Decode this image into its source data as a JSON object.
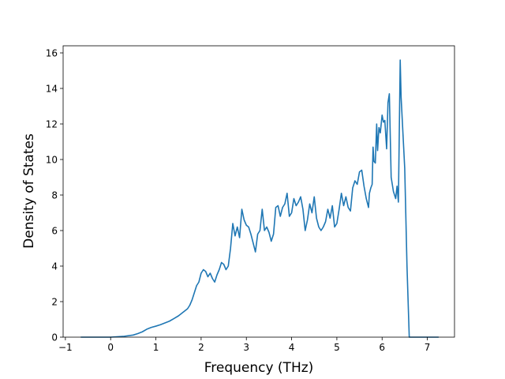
{
  "chart_data": {
    "type": "line",
    "title": "",
    "xlabel": "Frequency (THz)",
    "ylabel": "Density of States",
    "xlim": [
      -1.05,
      7.6
    ],
    "ylim": [
      0,
      16.4
    ],
    "xticks": [
      -1,
      0,
      1,
      2,
      3,
      4,
      5,
      6,
      7
    ],
    "yticks": [
      0,
      2,
      4,
      6,
      8,
      10,
      12,
      14,
      16
    ],
    "xtick_labels": [
      "−1",
      "0",
      "1",
      "2",
      "3",
      "4",
      "5",
      "6",
      "7"
    ],
    "ytick_labels": [
      "0",
      "2",
      "4",
      "6",
      "8",
      "10",
      "12",
      "14",
      "16"
    ],
    "grid": false,
    "legend": "none",
    "series": [
      {
        "color": "#1f77b4",
        "x": [
          -0.66,
          0.0,
          0.3,
          0.5,
          0.6,
          0.7,
          0.8,
          0.9,
          1.0,
          1.1,
          1.2,
          1.3,
          1.4,
          1.5,
          1.6,
          1.7,
          1.75,
          1.8,
          1.85,
          1.9,
          1.95,
          2.0,
          2.05,
          2.1,
          2.15,
          2.2,
          2.25,
          2.3,
          2.35,
          2.4,
          2.45,
          2.5,
          2.55,
          2.6,
          2.65,
          2.7,
          2.75,
          2.8,
          2.85,
          2.9,
          2.95,
          3.0,
          3.05,
          3.1,
          3.15,
          3.2,
          3.25,
          3.3,
          3.35,
          3.4,
          3.45,
          3.5,
          3.55,
          3.6,
          3.65,
          3.7,
          3.75,
          3.8,
          3.85,
          3.9,
          3.95,
          4.0,
          4.05,
          4.1,
          4.15,
          4.2,
          4.25,
          4.3,
          4.35,
          4.4,
          4.45,
          4.5,
          4.55,
          4.6,
          4.65,
          4.7,
          4.75,
          4.8,
          4.85,
          4.9,
          4.95,
          5.0,
          5.05,
          5.1,
          5.15,
          5.2,
          5.25,
          5.3,
          5.35,
          5.4,
          5.45,
          5.5,
          5.55,
          5.6,
          5.65,
          5.7,
          5.72,
          5.75,
          5.78,
          5.8,
          5.82,
          5.85,
          5.88,
          5.9,
          5.93,
          5.96,
          6.0,
          6.03,
          6.06,
          6.1,
          6.13,
          6.16,
          6.2,
          6.25,
          6.3,
          6.33,
          6.36,
          6.4,
          6.42,
          6.45,
          6.5,
          6.55,
          6.6,
          6.65,
          7.25
        ],
        "y": [
          0.0,
          0.0,
          0.05,
          0.12,
          0.2,
          0.3,
          0.45,
          0.55,
          0.62,
          0.7,
          0.8,
          0.9,
          1.05,
          1.2,
          1.4,
          1.6,
          1.8,
          2.1,
          2.5,
          2.9,
          3.1,
          3.6,
          3.8,
          3.7,
          3.4,
          3.6,
          3.3,
          3.1,
          3.5,
          3.8,
          4.2,
          4.1,
          3.8,
          4.0,
          5.0,
          6.4,
          5.7,
          6.2,
          5.6,
          7.2,
          6.6,
          6.3,
          6.2,
          5.8,
          5.3,
          4.8,
          5.8,
          6.0,
          7.2,
          6.0,
          6.2,
          5.9,
          5.4,
          5.8,
          7.3,
          7.4,
          6.8,
          7.3,
          7.5,
          8.1,
          6.8,
          7.0,
          7.8,
          7.4,
          7.6,
          7.9,
          7.2,
          6.0,
          6.6,
          7.5,
          7.0,
          7.9,
          6.7,
          6.2,
          6.0,
          6.2,
          6.5,
          7.2,
          6.7,
          7.4,
          6.2,
          6.4,
          7.2,
          8.1,
          7.4,
          7.9,
          7.3,
          7.1,
          8.4,
          8.8,
          8.6,
          9.3,
          9.4,
          8.5,
          7.8,
          7.3,
          8.1,
          8.4,
          8.6,
          10.7,
          9.9,
          9.8,
          12.0,
          10.5,
          11.8,
          11.5,
          12.5,
          12.1,
          12.2,
          10.6,
          13.2,
          13.7,
          9.0,
          8.2,
          7.8,
          8.5,
          7.6,
          15.6,
          13.5,
          12.0,
          9.5,
          4.0,
          0.0,
          0.0,
          0.0
        ]
      }
    ]
  }
}
